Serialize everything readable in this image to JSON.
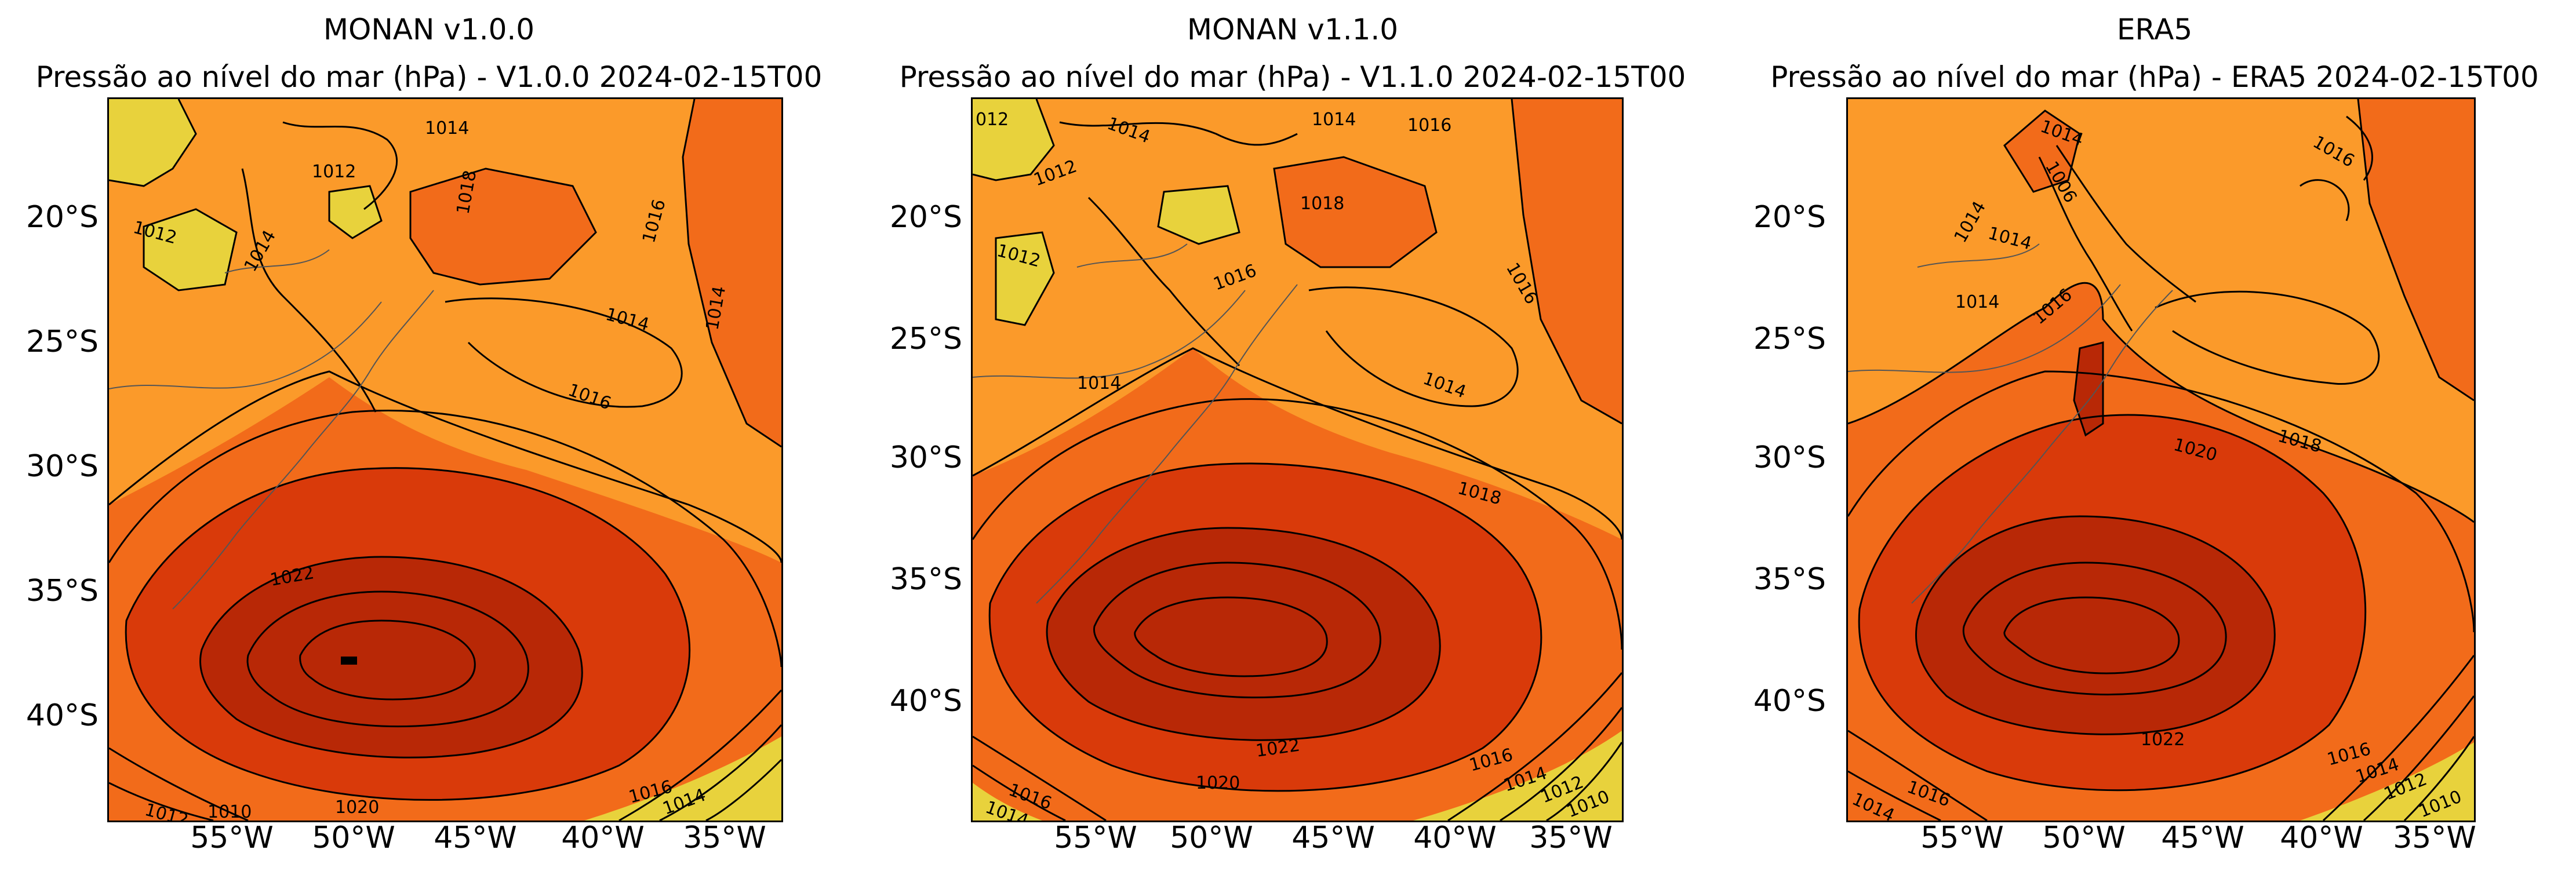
{
  "colors": {
    "lightest": "#e8d23c",
    "light": "#fb9a2a",
    "mid": "#f26b1a",
    "dark": "#d93a0a",
    "darkest": "#b82806",
    "contour": "#000000",
    "border": "#555555"
  },
  "axes": {
    "lat_ticks": [
      "20°S",
      "25°S",
      "30°S",
      "35°S",
      "40°S"
    ],
    "lon_ticks": [
      "55°W",
      "50°W",
      "45°W",
      "40°W",
      "35°W"
    ]
  },
  "panels": [
    {
      "title": "MONAN v1.0.0",
      "subtitle": "Pressão ao nível do mar (hPa) - V1.0.0 2024-02-15T00",
      "contour_labels": [
        "1014",
        "1012",
        "1018",
        "1016",
        "1014",
        "1012",
        "1014",
        "1014",
        "1016",
        "1022",
        "1016",
        "1014",
        "1012",
        "1020",
        "1010"
      ]
    },
    {
      "title": "MONAN v1.1.0",
      "subtitle": "Pressão ao nível do mar (hPa) - V1.1.0 2024-02-15T00",
      "contour_labels": [
        "012",
        "1014",
        "1014",
        "1016",
        "1012",
        "1018",
        "1012",
        "1016",
        "1016",
        "1014",
        "1014",
        "1018",
        "1022",
        "1020",
        "1016",
        "1014",
        "1012",
        "1010",
        "1016",
        "1014"
      ]
    },
    {
      "title": "ERA5",
      "subtitle": "Pressão ao nível do mar (hPa) - ERA5 2024-02-15T00",
      "contour_labels": [
        "1014",
        "1006",
        "1016",
        "1014",
        "1014",
        "1014",
        "1016",
        "1020",
        "1018",
        "1022",
        "1016",
        "1014",
        "1012",
        "1010",
        "1014",
        "1016"
      ]
    }
  ],
  "map_data": {
    "variable": "Pressão ao nível do mar (hPa)",
    "valid_time": "2024-02-15T00",
    "lon_range": [
      "60°W",
      "32°W"
    ],
    "lat_range": [
      "15°S",
      "44°S"
    ],
    "high_center": {
      "lat": "38°S",
      "lon": "49°W",
      "max_contour_hPa": 1022
    }
  }
}
